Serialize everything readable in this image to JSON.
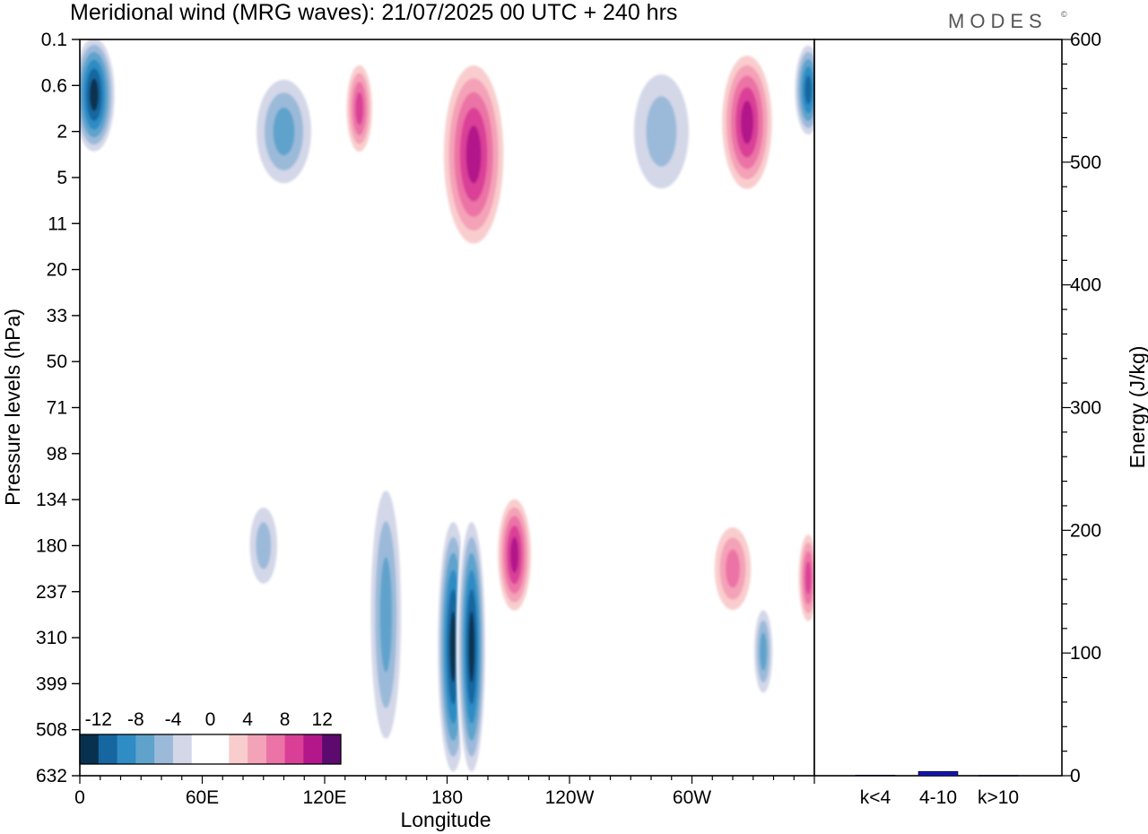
{
  "header": {
    "title": "Meridional wind (MRG waves):  21/07/2025  00 UTC  + 240 hrs",
    "logo": "MODES",
    "logo_mark": "©"
  },
  "chart_data": [
    {
      "type": "heatmap",
      "title": "Meridional wind (MRG waves):  21/07/2025  00 UTC  + 240 hrs",
      "xlabel": "Longitude",
      "ylabel": "Pressure levels (hPa)",
      "x_ticks": [
        "0",
        "60E",
        "120E",
        "180",
        "120W",
        "60W"
      ],
      "x_tick_values_deg": [
        0,
        60,
        120,
        180,
        240,
        300
      ],
      "xlim_deg": [
        0,
        360
      ],
      "y_ticks": [
        "0.1",
        "0.6",
        "2",
        "5",
        "11",
        "20",
        "33",
        "50",
        "71",
        "98",
        "134",
        "180",
        "237",
        "310",
        "399",
        "508",
        "632"
      ],
      "colorbar": {
        "labels": [
          "-12",
          "-8",
          "-4",
          "0",
          "4",
          "8",
          "12"
        ],
        "levels": [
          -14,
          -12,
          -10,
          -8,
          -6,
          -4,
          -2,
          0,
          2,
          4,
          6,
          8,
          10,
          12,
          14
        ],
        "colors": [
          "#08304f",
          "#1666a0",
          "#2f8cc4",
          "#5fa3cc",
          "#9bbad9",
          "#d3d7e8",
          "#ffffff",
          "#ffffff",
          "#f9cdcd",
          "#f4a2b8",
          "#ec73a5",
          "#da3f97",
          "#b3178a",
          "#5c0a6e"
        ]
      },
      "features": [
        {
          "lon": 183,
          "level_idx": 13.2,
          "value": -14,
          "lon_width": 9,
          "level_height": 5.5
        },
        {
          "lon": 192,
          "level_idx": 13.2,
          "value": -14,
          "lon_width": 8,
          "level_height": 5.5
        },
        {
          "lon": 213,
          "level_idx": 11.2,
          "value": 12,
          "lon_width": 10,
          "level_height": 2.5
        },
        {
          "lon": 150,
          "level_idx": 12.5,
          "value": -8,
          "lon_width": 10,
          "level_height": 6
        },
        {
          "lon": 90,
          "level_idx": 11.0,
          "value": -6,
          "lon_width": 10,
          "level_height": 2
        },
        {
          "lon": 7,
          "level_idx": 1.2,
          "value": -14,
          "lon_width": 12,
          "level_height": 2.5
        },
        {
          "lon": 357,
          "level_idx": 1.1,
          "value": -12,
          "lon_width": 8,
          "level_height": 2
        },
        {
          "lon": 100,
          "level_idx": 2.0,
          "value": -8,
          "lon_width": 18,
          "level_height": 2.5
        },
        {
          "lon": 137,
          "level_idx": 1.5,
          "value": 10,
          "lon_width": 8,
          "level_height": 2
        },
        {
          "lon": 193,
          "level_idx": 2.5,
          "value": 12,
          "lon_width": 18,
          "level_height": 4
        },
        {
          "lon": 327,
          "level_idx": 1.8,
          "value": 12,
          "lon_width": 15,
          "level_height": 3
        },
        {
          "lon": 285,
          "level_idx": 2.0,
          "value": -6,
          "lon_width": 20,
          "level_height": 3
        },
        {
          "lon": 320,
          "level_idx": 11.5,
          "value": 8,
          "lon_width": 12,
          "level_height": 2
        },
        {
          "lon": 357,
          "level_idx": 11.7,
          "value": 10,
          "lon_width": 6,
          "level_height": 2
        },
        {
          "lon": 335,
          "level_idx": 13.3,
          "value": -8,
          "lon_width": 6,
          "level_height": 2
        }
      ]
    },
    {
      "type": "bar",
      "categories": [
        "k<4",
        "4-10",
        "k>10"
      ],
      "values": [
        0.5,
        3.5,
        0.3
      ],
      "ylabel": "Energy (J/kg)",
      "ylim": [
        0,
        600
      ],
      "y_ticks": [
        "0",
        "100",
        "200",
        "300",
        "400",
        "500",
        "600"
      ],
      "bar_color": "#1414b4"
    }
  ]
}
